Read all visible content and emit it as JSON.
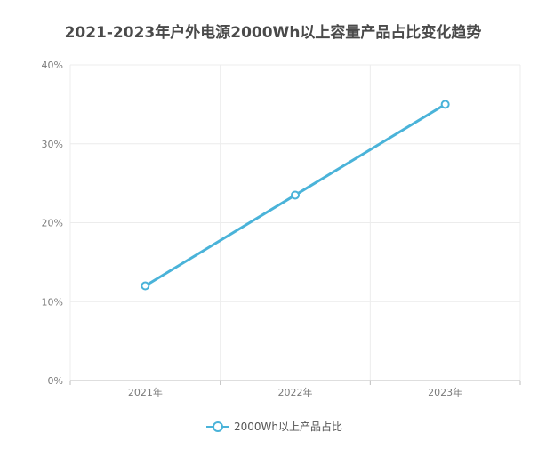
{
  "chart_data": {
    "type": "line",
    "title": "2021-2023年户外电源2000Wh以上容量产品占比变化趋势",
    "xlabel": "",
    "ylabel": "",
    "categories": [
      "2021年",
      "2022年",
      "2023年"
    ],
    "ylim": [
      0,
      40
    ],
    "yticks": [
      0,
      10,
      20,
      30,
      40
    ],
    "ytick_labels": [
      "0%",
      "10%",
      "20%",
      "30%",
      "40%"
    ],
    "series": [
      {
        "name": "2000Wh以上产品占比",
        "values": [
          12,
          23.5,
          35
        ],
        "color": "#4ab3d9"
      }
    ],
    "grid": true,
    "legend_position": "bottom-center"
  }
}
